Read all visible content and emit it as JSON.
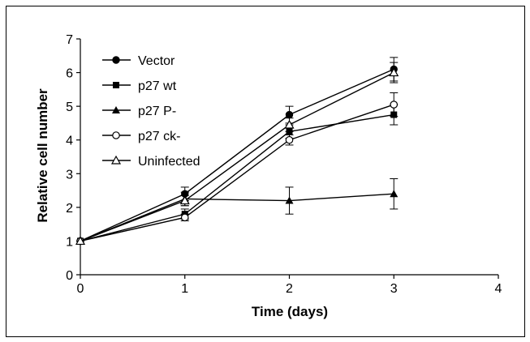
{
  "chart_data": {
    "type": "line",
    "title": "",
    "xlabel": "Time (days)",
    "ylabel": "Relative cell number",
    "xlim": [
      0,
      4
    ],
    "ylim": [
      0,
      7
    ],
    "xticks": [
      0,
      1,
      2,
      3,
      4
    ],
    "yticks": [
      0,
      1,
      2,
      3,
      4,
      5,
      6,
      7
    ],
    "grid": false,
    "legend_position": "top-left",
    "x": [
      0,
      1,
      2,
      3
    ],
    "series": [
      {
        "name": "Vector",
        "marker": "filled-circle",
        "values": [
          1.0,
          2.4,
          4.75,
          6.1
        ],
        "errors": [
          0,
          0.2,
          0.25,
          0.35
        ]
      },
      {
        "name": "p27 wt",
        "marker": "filled-square",
        "values": [
          1.0,
          1.8,
          4.25,
          4.75
        ],
        "errors": [
          0,
          0.15,
          0.2,
          0.3
        ]
      },
      {
        "name": "p27 P-",
        "marker": "filled-triangle",
        "values": [
          1.0,
          2.25,
          2.2,
          2.4
        ],
        "errors": [
          0,
          0.2,
          0.4,
          0.45
        ]
      },
      {
        "name": "p27 ck-",
        "marker": "open-circle",
        "values": [
          1.0,
          1.7,
          4.0,
          5.05
        ],
        "errors": [
          0,
          0.1,
          0.15,
          0.35
        ]
      },
      {
        "name": "Uninfected",
        "marker": "open-triangle",
        "values": [
          1.0,
          2.2,
          4.45,
          6.0
        ],
        "errors": [
          0,
          0.15,
          0.2,
          0.3
        ]
      }
    ]
  }
}
